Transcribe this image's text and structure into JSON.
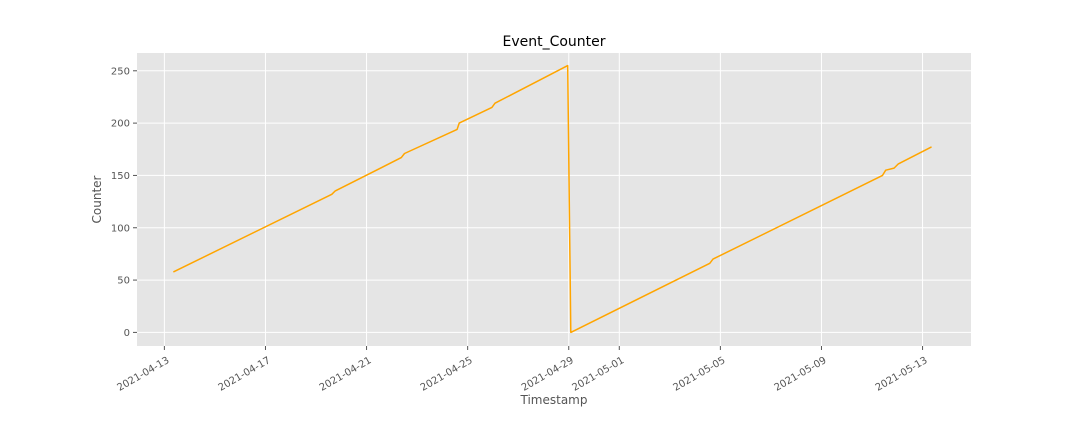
{
  "chart_data": {
    "type": "line",
    "title": "Event_Counter",
    "xlabel": "Timestamp",
    "ylabel": "Counter",
    "x_type": "date",
    "xlim": [
      "2021-04-11T22:00",
      "2021-05-14T22:00"
    ],
    "ylim": [
      -13,
      267
    ],
    "x_ticks": [
      "2021-04-13",
      "2021-04-17",
      "2021-04-21",
      "2021-04-25",
      "2021-04-29",
      "2021-05-01",
      "2021-05-05",
      "2021-05-09",
      "2021-05-13"
    ],
    "y_ticks": [
      0,
      50,
      100,
      150,
      200,
      250
    ],
    "grid": true,
    "background": "#e5e5e5",
    "grid_color": "#ffffff",
    "series": [
      {
        "color": "#ffa500",
        "points": [
          {
            "x": "2021-04-13T09:00",
            "y": 58
          },
          {
            "x": "2021-04-19T15:00",
            "y": 132
          },
          {
            "x": "2021-04-19T18:00",
            "y": 135
          },
          {
            "x": "2021-04-22T09:00",
            "y": 167
          },
          {
            "x": "2021-04-22T12:00",
            "y": 171
          },
          {
            "x": "2021-04-24T14:00",
            "y": 194
          },
          {
            "x": "2021-04-24T16:00",
            "y": 200
          },
          {
            "x": "2021-04-25T23:00",
            "y": 215
          },
          {
            "x": "2021-04-26T02:00",
            "y": 219
          },
          {
            "x": "2021-04-28T23:00",
            "y": 255
          },
          {
            "x": "2021-04-29T02:00",
            "y": 0
          },
          {
            "x": "2021-05-04T14:00",
            "y": 66
          },
          {
            "x": "2021-05-04T17:00",
            "y": 70
          },
          {
            "x": "2021-05-11T10:00",
            "y": 150
          },
          {
            "x": "2021-05-11T13:00",
            "y": 155
          },
          {
            "x": "2021-05-11T21:00",
            "y": 157
          },
          {
            "x": "2021-05-12T01:00",
            "y": 161
          },
          {
            "x": "2021-05-13T08:00",
            "y": 177
          }
        ]
      }
    ]
  }
}
